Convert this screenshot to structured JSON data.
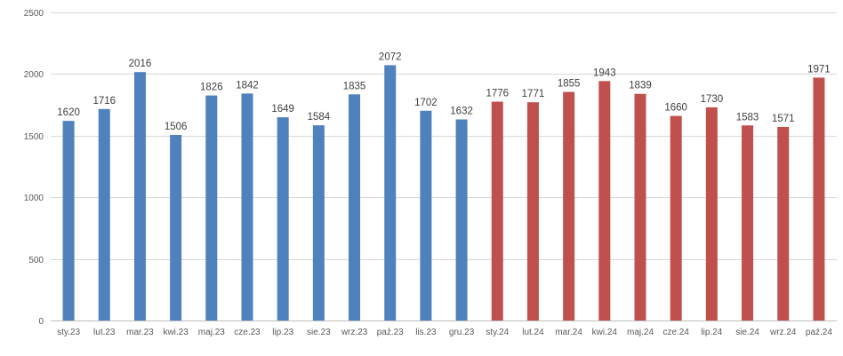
{
  "chart_data": {
    "type": "bar",
    "title": "",
    "xlabel": "",
    "ylabel": "",
    "ylim": [
      0,
      2500
    ],
    "yticks": [
      0,
      500,
      1000,
      1500,
      2000,
      2500
    ],
    "grid": true,
    "legend": "none",
    "categories": [
      "sty.23",
      "lut.23",
      "mar.23",
      "kwi.23",
      "maj.23",
      "cze.23",
      "lip.23",
      "sie.23",
      "wrz.23",
      "paź.23",
      "lis.23",
      "gru.23",
      "sty.24",
      "lut.24",
      "mar.24",
      "kwi.24",
      "maj.24",
      "cze.24",
      "lip.24",
      "sie.24",
      "wrz.24",
      "paź.24"
    ],
    "values": [
      1620,
      1716,
      2016,
      1506,
      1826,
      1842,
      1649,
      1584,
      1835,
      2072,
      1702,
      1632,
      1776,
      1771,
      1855,
      1943,
      1839,
      1660,
      1730,
      1583,
      1571,
      1971
    ],
    "bar_colors": [
      "#4f81bd",
      "#4f81bd",
      "#4f81bd",
      "#4f81bd",
      "#4f81bd",
      "#4f81bd",
      "#4f81bd",
      "#4f81bd",
      "#4f81bd",
      "#4f81bd",
      "#4f81bd",
      "#4f81bd",
      "#c0504d",
      "#c0504d",
      "#c0504d",
      "#c0504d",
      "#c0504d",
      "#c0504d",
      "#c0504d",
      "#c0504d",
      "#c0504d",
      "#c0504d"
    ]
  }
}
